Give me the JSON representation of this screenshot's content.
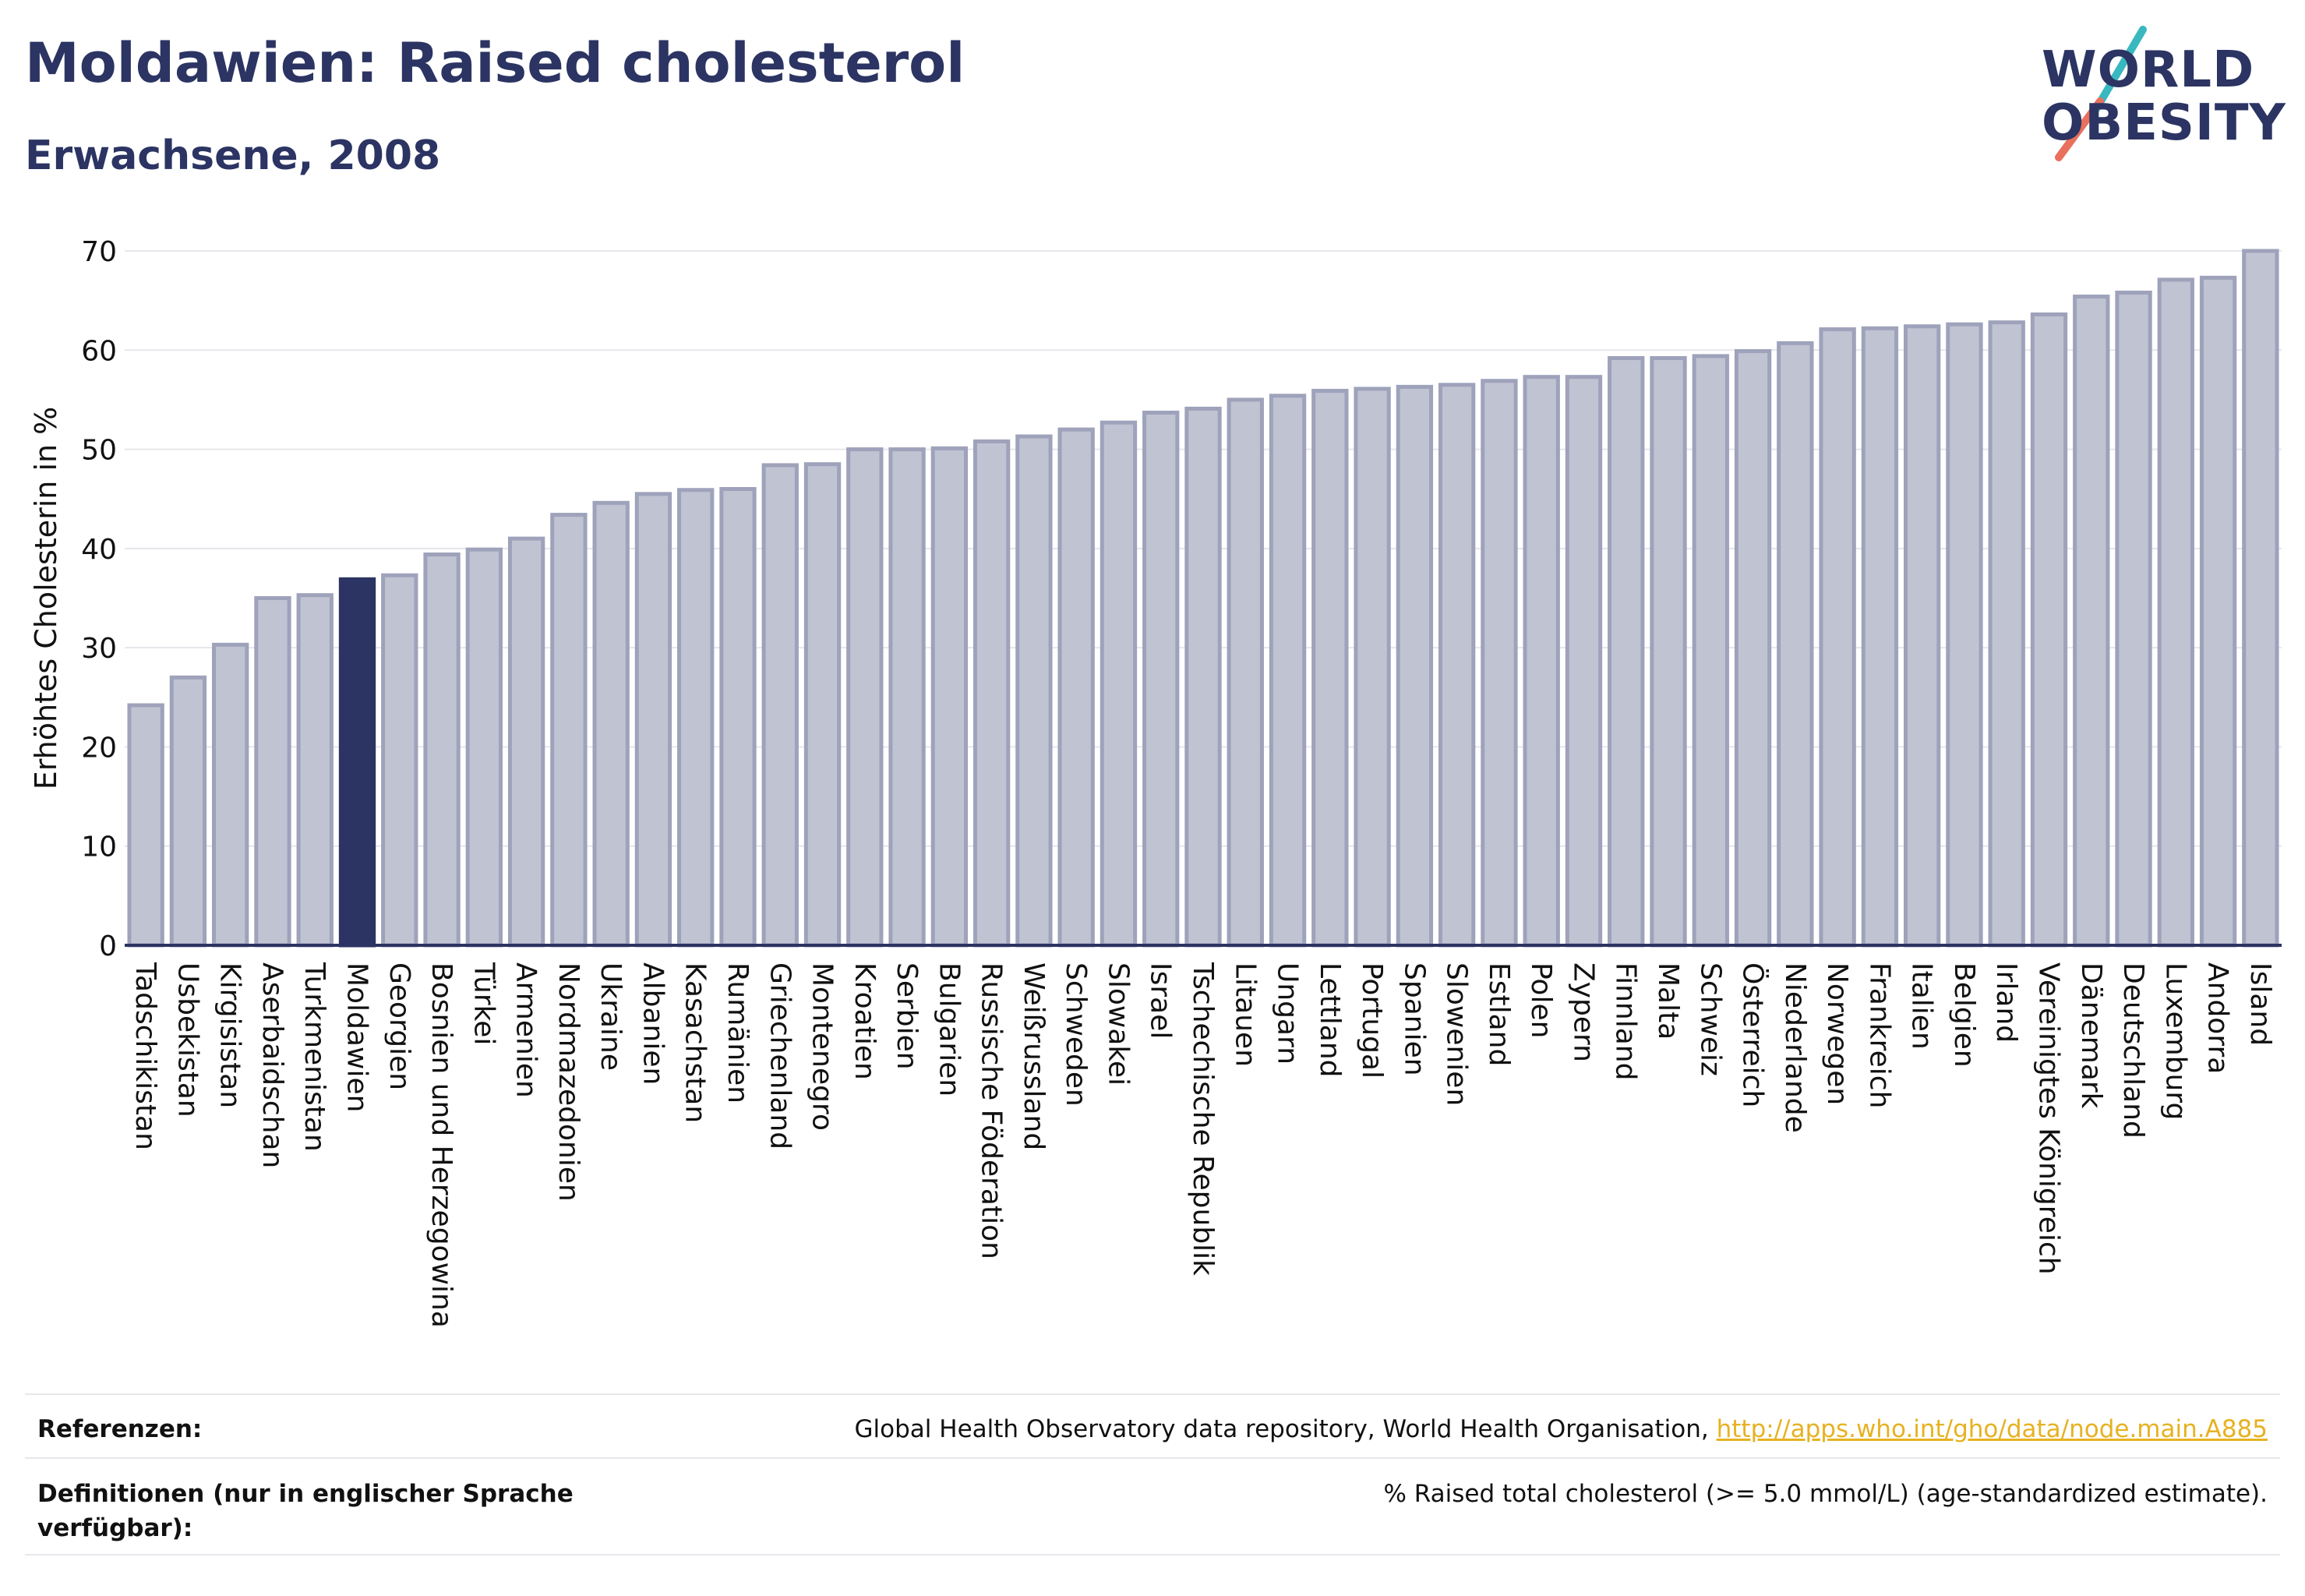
{
  "header": {
    "title": "Moldawien: Raised cholesterol",
    "subtitle": "Erwachsene, 2008"
  },
  "logo": {
    "line1": "WORLD",
    "line2": "OBESITY"
  },
  "colors": {
    "bar_default": "#c0c3d2",
    "bar_border": "#9ea2ba",
    "bar_highlight": "#2b3462",
    "axis": "#2b3462",
    "grid": "#e6e6ec",
    "text_dark": "#111111",
    "link": "#e6b221",
    "logo_teal": "#3ab8c0",
    "logo_coral": "#e8705c"
  },
  "chart_data": {
    "type": "bar",
    "ylabel": "Erhöhtes Cholesterin in %",
    "xlabel": "",
    "ylim": [
      0,
      70
    ],
    "yticks": [
      0,
      10,
      20,
      30,
      40,
      50,
      60,
      70
    ],
    "grid": true,
    "highlight": "Moldawien",
    "categories": [
      "Tadschikistan",
      "Usbekistan",
      "Kirgisistan",
      "Aserbaidschan",
      "Turkmenistan",
      "Moldawien",
      "Georgien",
      "Bosnien und Herzegowina",
      "Türkei",
      "Armenien",
      "Nordmazedonien",
      "Ukraine",
      "Albanien",
      "Kasachstan",
      "Rumänien",
      "Griechenland",
      "Montenegro",
      "Kroatien",
      "Serbien",
      "Bulgarien",
      "Russische Föderation",
      "Weißrussland",
      "Schweden",
      "Slowakei",
      "Israel",
      "Tschechische Republik",
      "Litauen",
      "Ungarn",
      "Lettland",
      "Portugal",
      "Spanien",
      "Slowenien",
      "Estland",
      "Polen",
      "Zypern",
      "Finnland",
      "Malta",
      "Schweiz",
      "Österreich",
      "Niederlande",
      "Norwegen",
      "Frankreich",
      "Italien",
      "Belgien",
      "Irland",
      "Vereinigtes Königreich",
      "Dänemark",
      "Deutschland",
      "Luxemburg",
      "Andorra",
      "Island"
    ],
    "values": [
      24.2,
      27.0,
      30.3,
      35.0,
      35.3,
      36.9,
      37.3,
      39.4,
      39.9,
      41.0,
      43.4,
      44.6,
      45.5,
      45.9,
      46.0,
      48.4,
      48.5,
      50.0,
      50.0,
      50.1,
      50.8,
      51.3,
      52.0,
      52.7,
      53.7,
      54.1,
      55.0,
      55.4,
      55.9,
      56.1,
      56.3,
      56.5,
      56.9,
      57.3,
      57.3,
      59.2,
      59.2,
      59.4,
      59.9,
      60.7,
      62.1,
      62.2,
      62.4,
      62.6,
      62.8,
      63.6,
      65.4,
      65.8,
      67.1,
      67.3,
      70.0
    ]
  },
  "footer": {
    "references_label": "Referenzen:",
    "references_text": "Global Health Observatory data repository, World Health Organisation, ",
    "references_link": "http://apps.who.int/gho/data/node.main.A885",
    "definitions_label": "Definitionen (nur in englischer Sprache verfügbar):",
    "definitions_text": "% Raised total cholesterol (>= 5.0 mmol/L) (age-standardized estimate)."
  }
}
